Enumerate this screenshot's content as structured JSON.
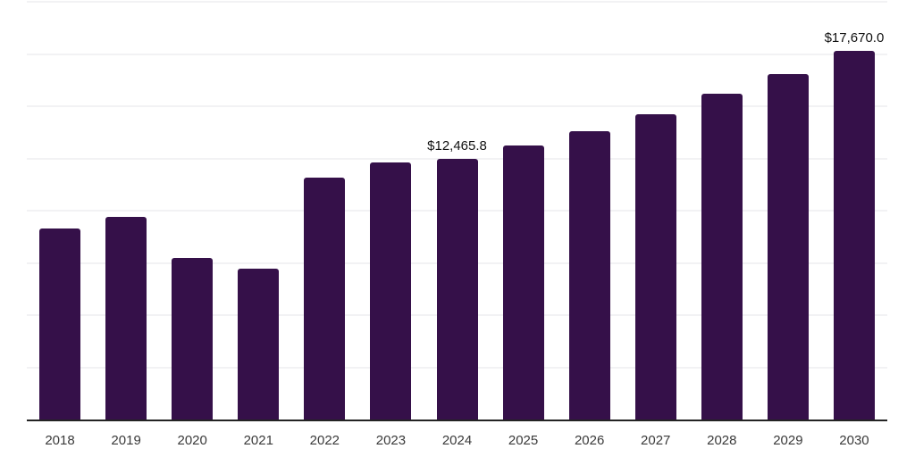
{
  "chart_data": {
    "type": "bar",
    "title": "",
    "xlabel": "",
    "ylabel": "",
    "categories": [
      "2018",
      "2019",
      "2020",
      "2021",
      "2022",
      "2023",
      "2024",
      "2025",
      "2026",
      "2027",
      "2028",
      "2029",
      "2030"
    ],
    "values": [
      9140,
      9700,
      7740,
      7230,
      11580,
      12290,
      12465.8,
      13120,
      13800,
      14620,
      15600,
      16540,
      17670.0
    ],
    "data_labels": [
      {
        "category": "2024",
        "text": "$12,465.8"
      },
      {
        "category": "2030",
        "text": "$17,670.0"
      }
    ],
    "ylim": [
      0,
      20000
    ],
    "grid_step": 2500,
    "grid": "horizontal",
    "legend_position": "none",
    "y_tick_labels_visible": false
  },
  "colors": {
    "background": "#ffffff",
    "bar": "#351049",
    "grid": "#f2f2f4",
    "axis": "#242424",
    "tick_label": "#3a3a3a",
    "data_label": "#121212"
  }
}
